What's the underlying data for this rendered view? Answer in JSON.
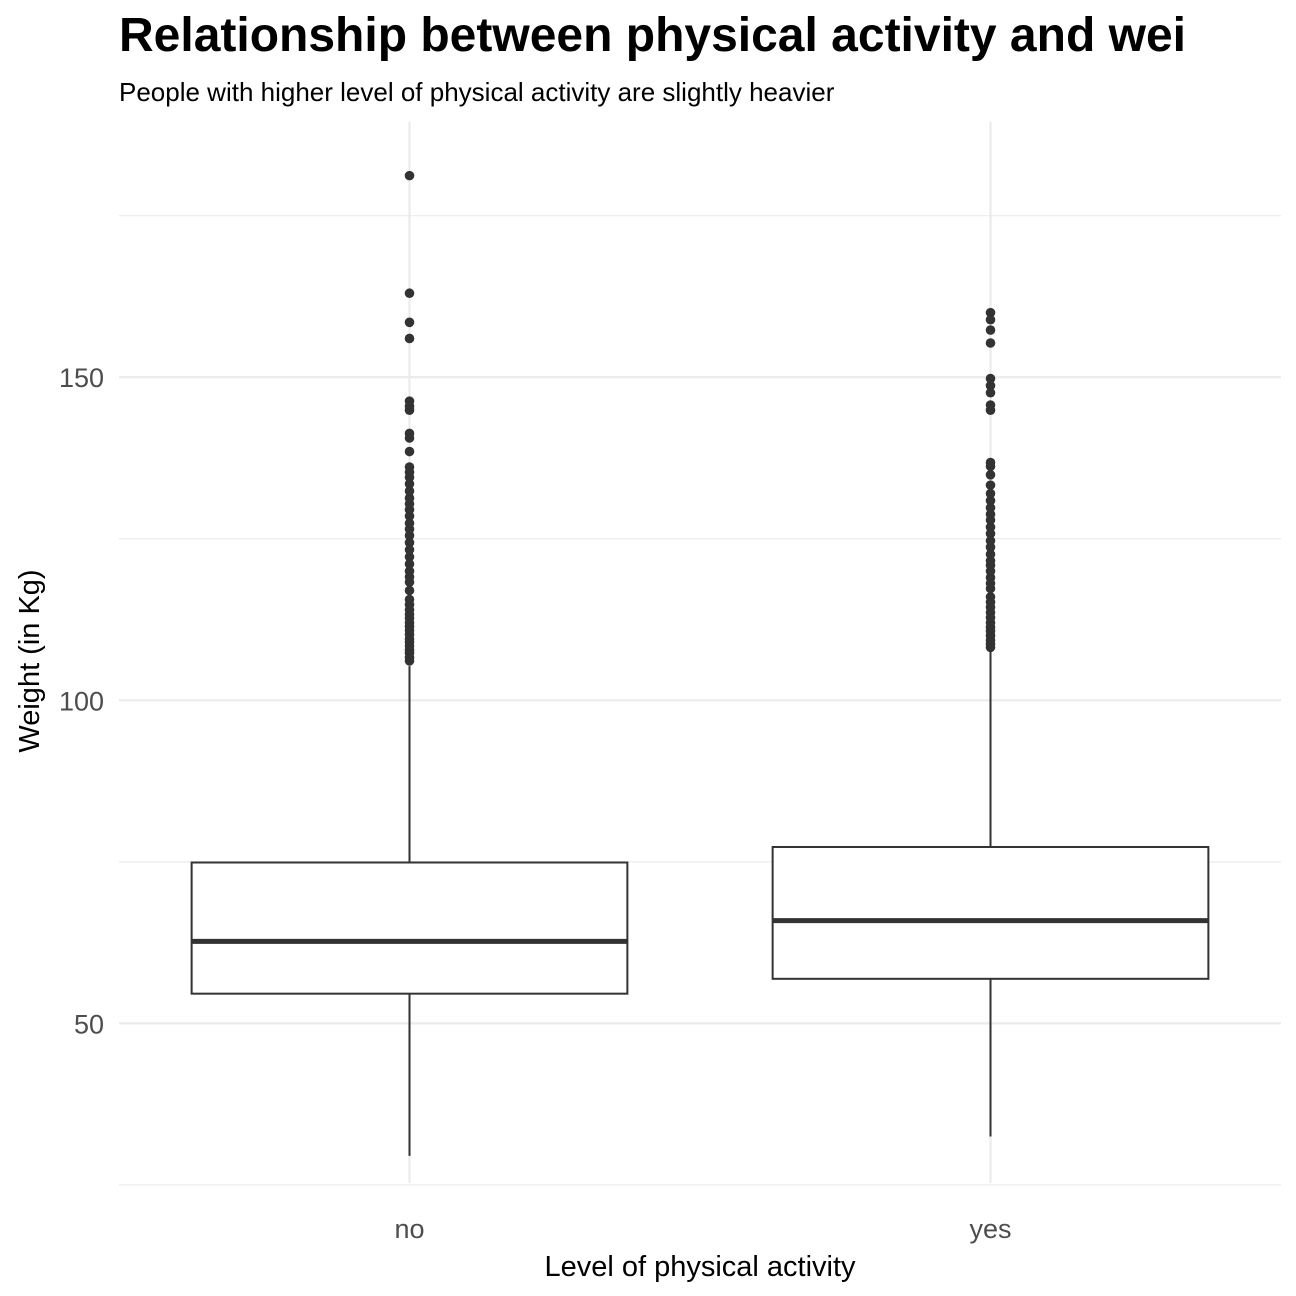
{
  "title": "Relationship between physical activity and wei",
  "subtitle": "People with higher level of physical activity are slightly heavier",
  "chart_data": {
    "type": "box",
    "title": "Relationship between physical activity and wei",
    "subtitle": "People with higher level of physical activity are slightly heavier",
    "xlabel": "Level of physical activity",
    "ylabel": "Weight (in Kg)",
    "categories": [
      "no",
      "yes"
    ],
    "ylim": [
      25.3,
      189.5
    ],
    "y_ticks": [
      50,
      100,
      150
    ],
    "y_minor_ticks": [
      25,
      75,
      125,
      175
    ],
    "grid": true,
    "legend": "none",
    "colors": {
      "box_fill": "#ffffff",
      "box_stroke": "#333333",
      "grid": "#ebebeb",
      "tick_text": "#4d4d4d"
    },
    "boxes": [
      {
        "category": "no",
        "whisker_low": 29.5,
        "q1": 54.6,
        "median": 62.7,
        "q3": 74.9,
        "whisker_high": 105.3,
        "outliers": [
          106.1,
          106.6,
          107.3,
          107.8,
          108.4,
          109.0,
          109.5,
          110.2,
          110.8,
          111.4,
          112.0,
          112.7,
          113.3,
          114.0,
          114.8,
          115.6,
          117.0,
          118.3,
          119.1,
          120.0,
          121.1,
          122.2,
          123.3,
          124.4,
          125.5,
          126.5,
          127.4,
          128.5,
          129.5,
          130.4,
          131.3,
          132.4,
          133.5,
          134.5,
          135.3,
          136.1,
          138.5,
          140.6,
          141.3,
          144.9,
          145.5,
          146.3,
          156.0,
          158.5,
          163.0,
          181.2
        ]
      },
      {
        "category": "yes",
        "whisker_low": 32.5,
        "q1": 56.9,
        "median": 65.9,
        "q3": 77.3,
        "whisker_high": 107.6,
        "outliers": [
          108.2,
          108.7,
          109.3,
          110.0,
          110.7,
          111.3,
          112.0,
          112.8,
          113.6,
          114.4,
          115.2,
          116.0,
          117.3,
          118.1,
          119.0,
          120.0,
          120.9,
          121.6,
          122.6,
          123.7,
          124.7,
          125.8,
          126.8,
          127.9,
          128.8,
          129.8,
          130.9,
          132.0,
          133.3,
          134.9,
          136.2,
          136.8,
          144.9,
          145.7,
          147.6,
          148.7,
          149.8,
          155.3,
          157.3,
          158.9,
          160.0
        ]
      }
    ]
  }
}
